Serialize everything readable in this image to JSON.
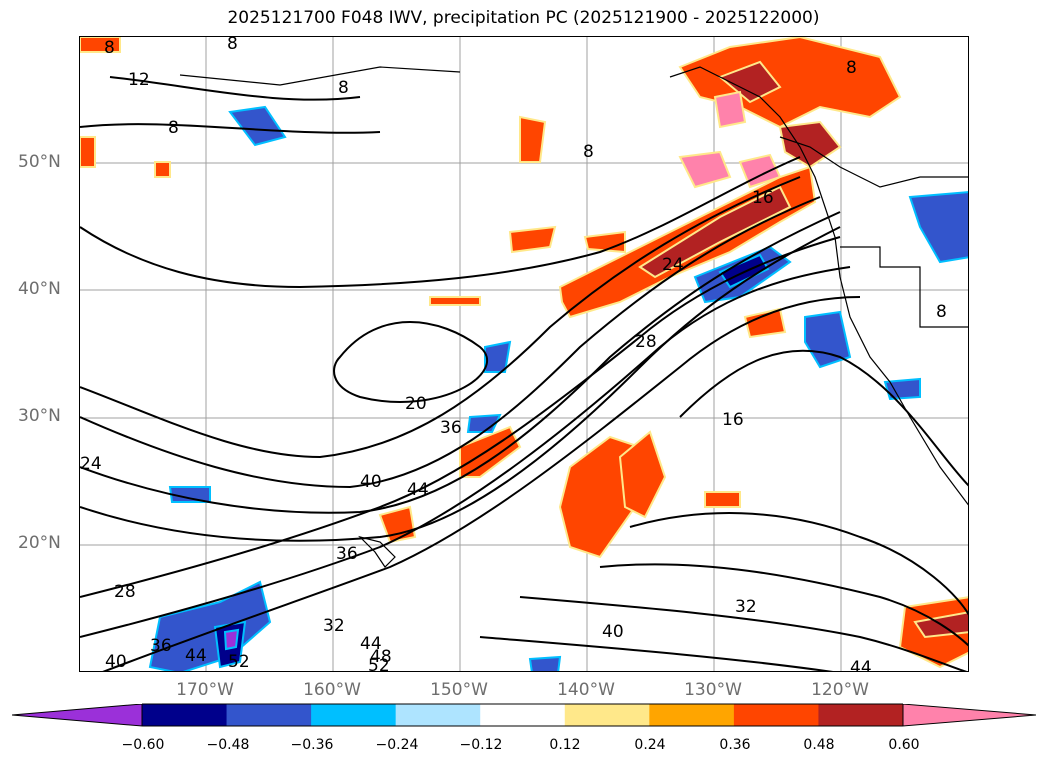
{
  "title": "2025121700 F048 IWV, precipitation PC (2025121900 - 2025122000)",
  "lat_labels": [
    "50°N",
    "40°N",
    "30°N",
    "20°N"
  ],
  "lon_labels": [
    "170°W",
    "160°W",
    "150°W",
    "140°W",
    "130°W",
    "120°W"
  ],
  "colorbar": {
    "ticks": [
      "−0.60",
      "−0.48",
      "−0.36",
      "−0.24",
      "−0.12",
      "0.12",
      "0.24",
      "0.36",
      "0.48",
      "0.60"
    ],
    "colors": [
      "#9b30d9",
      "#00008b",
      "#3355cc",
      "#00bfff",
      "#aee4ff",
      "#ffffff",
      "#ffe88a",
      "#ffa500",
      "#ff4500",
      "#b22222",
      "#ff82ab"
    ]
  },
  "contour_labels": [
    "8",
    "8",
    "8",
    "12",
    "8",
    "8",
    "16",
    "24",
    "28",
    "20",
    "36",
    "40",
    "44",
    "16",
    "36",
    "28",
    "32",
    "36",
    "44",
    "48",
    "52",
    "40",
    "32",
    "40",
    "44",
    "8",
    "8",
    "24",
    "44",
    "52"
  ]
}
